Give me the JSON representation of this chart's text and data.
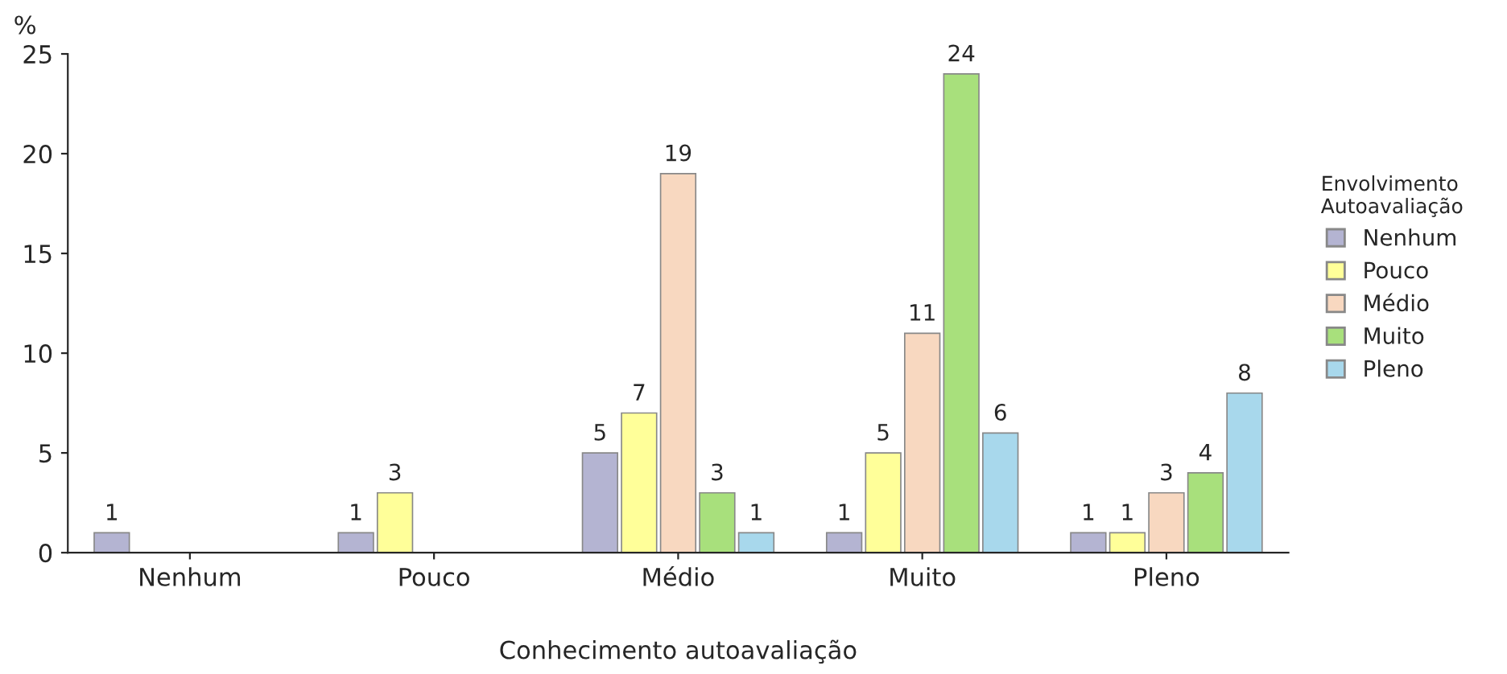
{
  "chart_data": {
    "type": "bar",
    "xlabel": "Conhecimento autoavaliação",
    "ylabel": "%",
    "legend_title": "Envolvimento\nAutoavaliação",
    "categories": [
      "Nenhum",
      "Pouco",
      "Médio",
      "Muito",
      "Pleno"
    ],
    "series": [
      {
        "name": "Nenhum",
        "color": "#b4b4d2",
        "values": [
          1,
          1,
          5,
          1,
          1
        ]
      },
      {
        "name": "Pouco",
        "color": "#ffff99",
        "values": [
          null,
          3,
          7,
          5,
          1
        ]
      },
      {
        "name": "Médio",
        "color": "#f8d8c0",
        "values": [
          null,
          null,
          19,
          11,
          3
        ]
      },
      {
        "name": "Muito",
        "color": "#a8e07c",
        "values": [
          null,
          null,
          3,
          24,
          4
        ]
      },
      {
        "name": "Pleno",
        "color": "#a8d8ec",
        "values": [
          null,
          null,
          1,
          6,
          8
        ]
      }
    ],
    "ylim": [
      0,
      25
    ],
    "yticks": [
      0,
      5,
      10,
      15,
      20,
      25
    ],
    "grid": false,
    "legend": "right",
    "data_labels": true
  }
}
